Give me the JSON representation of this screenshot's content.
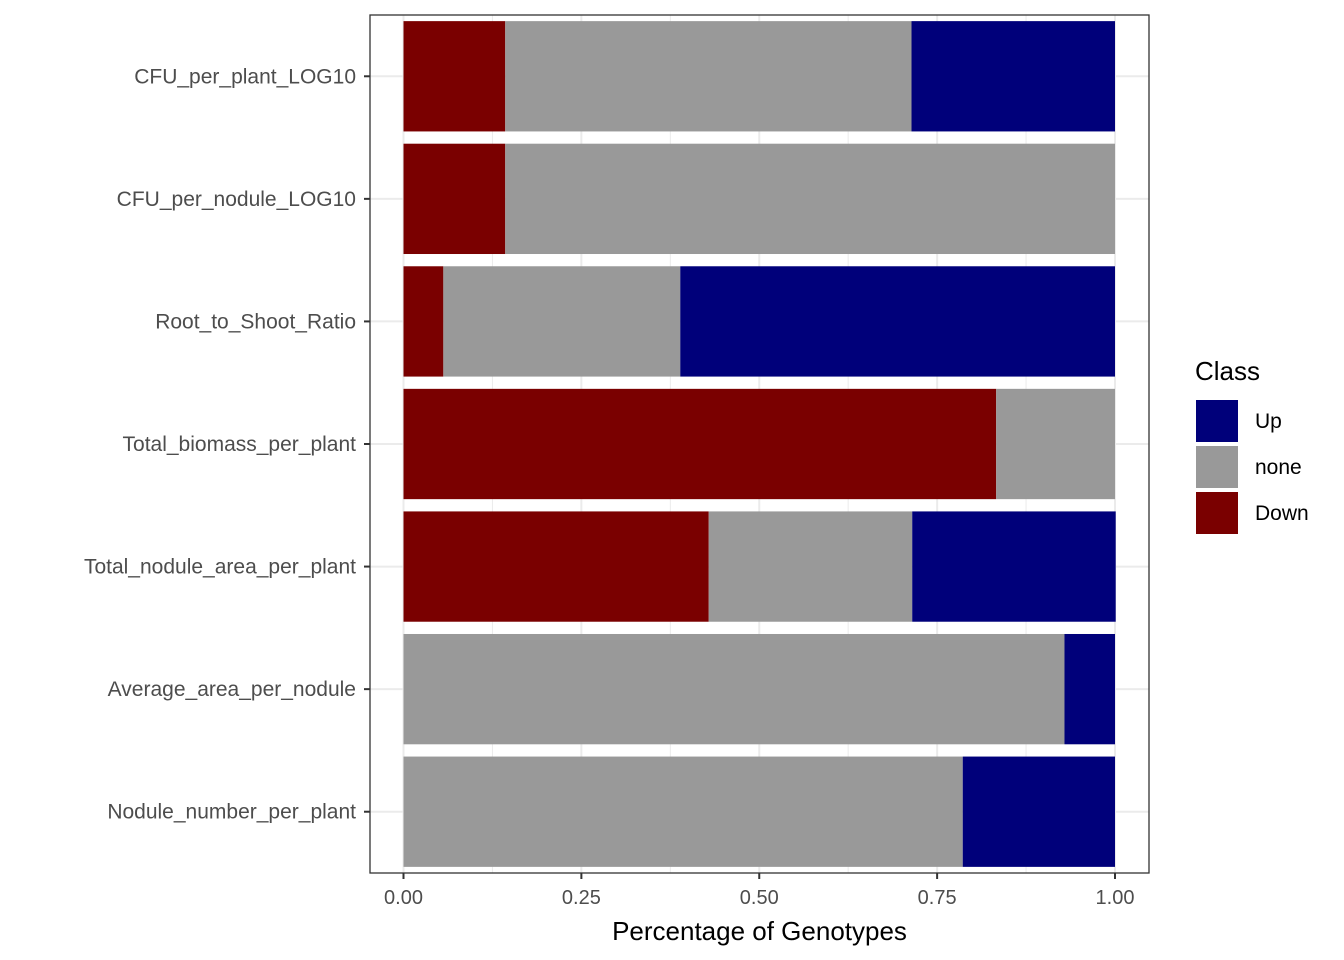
{
  "chart_data": {
    "type": "bar",
    "orientation": "horizontal",
    "stacked": true,
    "categories": [
      "CFU_per_plant_LOG10",
      "CFU_per_nodule_LOG10",
      "Root_to_Shoot_Ratio",
      "Total_biomass_per_plant",
      "Total_nodule_area_per_plant",
      "Average_area_per_nodule",
      "Nodule_number_per_plant"
    ],
    "series": [
      {
        "name": "Down",
        "color": "#7a0000",
        "values": [
          0.143,
          0.143,
          0.056,
          0.833,
          0.429,
          0.0,
          0.0
        ]
      },
      {
        "name": "none",
        "color": "#999999",
        "values": [
          0.571,
          0.857,
          0.333,
          0.167,
          0.286,
          0.929,
          0.786
        ]
      },
      {
        "name": "Up",
        "color": "#00007a",
        "values": [
          0.286,
          0.0,
          0.611,
          0.0,
          0.286,
          0.071,
          0.214
        ]
      }
    ],
    "xlabel": "Percentage of Genotypes",
    "ylabel": "",
    "xlim": [
      0,
      1
    ],
    "xticks": [
      "0.00",
      "0.25",
      "0.50",
      "0.75",
      "1.00"
    ],
    "grid": true,
    "legend": {
      "title": "Class",
      "placement": "right",
      "entries": [
        "Up",
        "none",
        "Down"
      ]
    }
  }
}
